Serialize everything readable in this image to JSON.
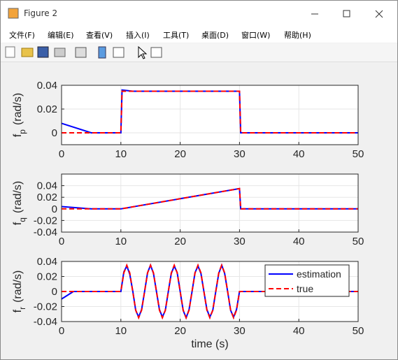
{
  "window": {
    "title": "Figure 2",
    "menus": [
      "文件(F)",
      "编辑(E)",
      "查看(V)",
      "插入(I)",
      "工具(T)",
      "桌面(D)",
      "窗口(W)",
      "帮助(H)"
    ]
  },
  "chart_data": [
    {
      "type": "line",
      "ylabel": {
        "base": "f",
        "sub": "p",
        "unit": "(rad/s)"
      },
      "x": [
        0,
        5,
        10,
        10.2,
        12,
        20,
        29.8,
        30,
        30.2,
        35,
        40,
        45,
        50
      ],
      "series": [
        {
          "name": "estimation",
          "color": "#0000ff",
          "style": "solid",
          "values": [
            0.008,
            0,
            0,
            0.036,
            0.035,
            0.035,
            0.035,
            0.035,
            0,
            0,
            0,
            0,
            0
          ]
        },
        {
          "name": "true",
          "color": "#ff0000",
          "style": "dashed",
          "values": [
            0,
            0,
            0,
            0.035,
            0.035,
            0.035,
            0.035,
            0.035,
            0,
            0,
            0,
            0,
            0
          ]
        }
      ],
      "xlim": [
        0,
        50
      ],
      "xticks": [
        0,
        10,
        20,
        30,
        40,
        50
      ],
      "ylim": [
        -0.01,
        0.04
      ],
      "yticks": [
        0,
        0.02,
        0.04
      ],
      "grid": true
    },
    {
      "type": "line",
      "ylabel": {
        "base": "f",
        "sub": "q",
        "unit": "(rad/s)"
      },
      "x": [
        0,
        5,
        10,
        20,
        30,
        30.2,
        35,
        40,
        45,
        50
      ],
      "series": [
        {
          "name": "estimation",
          "color": "#0000ff",
          "style": "solid",
          "values": [
            0.004,
            0,
            0,
            0.0175,
            0.035,
            0,
            0,
            0,
            0,
            0
          ]
        },
        {
          "name": "true",
          "color": "#ff0000",
          "style": "dashed",
          "values": [
            0,
            0,
            0,
            0.0175,
            0.035,
            0,
            0,
            0,
            0,
            0
          ]
        }
      ],
      "xlim": [
        0,
        50
      ],
      "xticks": [
        0,
        10,
        20,
        30,
        40,
        50
      ],
      "ylim": [
        -0.04,
        0.06
      ],
      "yticks": [
        -0.04,
        -0.02,
        0,
        0.02,
        0.04
      ],
      "grid": true
    },
    {
      "type": "line",
      "ylabel": {
        "base": "f",
        "sub": "r",
        "unit": "(rad/s)"
      },
      "xlabel": "time (s)",
      "legend": "northeast",
      "x": [
        0,
        2,
        4,
        6,
        8,
        10,
        10.5,
        11,
        11.5,
        12,
        12.5,
        13,
        13.5,
        14,
        14.5,
        15,
        15.5,
        16,
        16.5,
        17,
        17.5,
        18,
        18.5,
        19,
        19.5,
        20,
        20.5,
        21,
        21.5,
        22,
        22.5,
        23,
        23.5,
        24,
        24.5,
        25,
        25.5,
        26,
        26.5,
        27,
        27.5,
        28,
        28.5,
        29,
        29.5,
        30,
        32,
        34,
        36,
        38,
        40,
        42,
        44,
        46,
        48,
        50
      ],
      "series": [
        {
          "name": "estimation",
          "color": "#0000ff",
          "style": "solid",
          "values": [
            -0.01,
            0,
            0,
            0,
            0,
            0,
            0.026,
            0.034,
            0.023,
            0.001,
            -0.025,
            -0.034,
            -0.024,
            0,
            0.025,
            0.035,
            0.024,
            0,
            -0.024,
            -0.034,
            -0.025,
            0,
            0.024,
            0.034,
            0.025,
            0,
            -0.025,
            -0.035,
            -0.024,
            0,
            0.025,
            0.034,
            0.024,
            0,
            -0.024,
            -0.034,
            -0.025,
            0,
            0.024,
            0.035,
            0.024,
            0,
            -0.025,
            -0.034,
            -0.024,
            0,
            0,
            0,
            0,
            0,
            0,
            0,
            0,
            0,
            0,
            0
          ]
        },
        {
          "name": "true",
          "color": "#ff0000",
          "style": "dashed",
          "values": [
            0,
            0,
            0,
            0,
            0,
            0,
            0.0247,
            0.035,
            0.0247,
            0,
            -0.0247,
            -0.035,
            -0.0247,
            0,
            0.0247,
            0.035,
            0.0247,
            0,
            -0.0247,
            -0.035,
            -0.0247,
            0,
            0.0247,
            0.035,
            0.0247,
            0,
            -0.0247,
            -0.035,
            -0.0247,
            0,
            0.0247,
            0.035,
            0.0247,
            0,
            -0.0247,
            -0.035,
            -0.0247,
            0,
            0.0247,
            0.035,
            0.0247,
            0,
            -0.0247,
            -0.035,
            -0.0247,
            0,
            0,
            0,
            0,
            0,
            0,
            0,
            0,
            0,
            0,
            0
          ]
        }
      ],
      "xlim": [
        0,
        50
      ],
      "xticks": [
        0,
        10,
        20,
        30,
        40,
        50
      ],
      "ylim": [
        -0.04,
        0.04
      ],
      "yticks": [
        -0.04,
        -0.02,
        0,
        0.02,
        0.04
      ],
      "grid": true
    }
  ]
}
